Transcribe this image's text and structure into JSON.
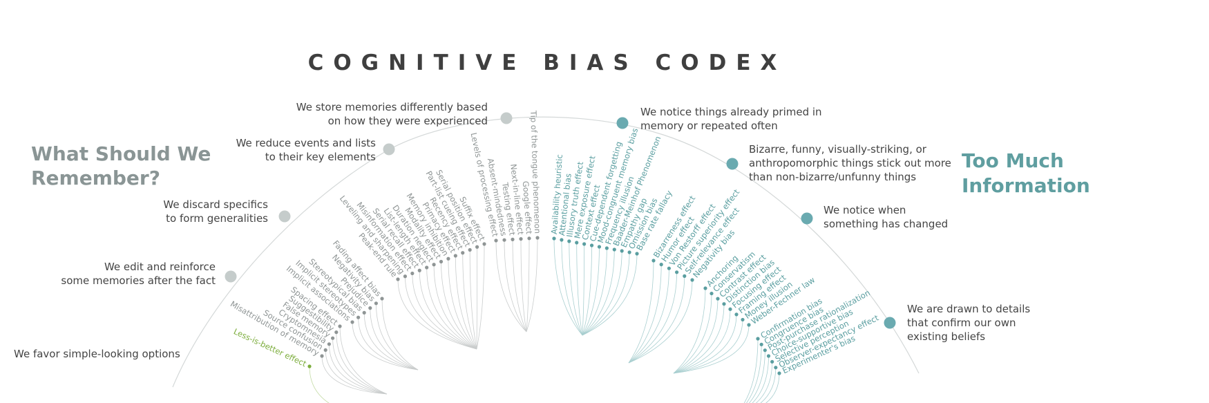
{
  "title": "COGNITIVE BIAS CODEX",
  "headings": {
    "left": [
      "What Should We",
      "Remember?"
    ],
    "right": [
      "Too Much",
      "Information"
    ]
  },
  "nodes": [
    {
      "label": [
        "We store memories differently based",
        "on how they were experienced"
      ]
    },
    {
      "label": [
        "We reduce events and lists",
        "to their key elements"
      ]
    },
    {
      "label": [
        "We discard specifics",
        "to form generalities"
      ]
    },
    {
      "label": [
        "We edit and reinforce",
        "some memories after the fact"
      ]
    },
    {
      "label": [
        "We favor simple-looking options"
      ]
    },
    {
      "label": [
        "We notice things already primed in",
        "memory or repeated often"
      ]
    },
    {
      "label": [
        "Bizarre, funny, visually-striking, or",
        "anthropomorphic things stick out more",
        "than non-bizarre/unfunny things"
      ]
    },
    {
      "label": [
        "We notice when",
        "something has changed"
      ]
    },
    {
      "label": [
        "We are drawn to details",
        "that confirm our own",
        "existing beliefs"
      ]
    }
  ],
  "groups": [
    {
      "items": [
        "Levels of processing effect",
        "Absent-mindedness",
        "Testing effect",
        "Next-in-line effect",
        "Google effect",
        "Tip of the tongue phenomenon"
      ]
    },
    {
      "items": [
        "Suffix effect",
        "Serial position effect",
        "Part-list cueing effect",
        "Recency effect",
        "Primacy effect",
        "Memory inhibition",
        "Modality effect",
        "Duration neglect",
        "List-length effect",
        "Serial recall effect",
        "Misinformation effect",
        "Leveling and sharpening",
        "Peak-end rule"
      ]
    },
    {
      "items": [
        "Fading affect bias",
        "Negativity bias",
        "Prejudice",
        "Stereotypical bias",
        "Implicit stereotypes",
        "Implicit associations"
      ]
    },
    {
      "items": [
        "Spacing effect",
        "Suggestibility",
        "False memory",
        "Cryptomnesia",
        "Source confusion",
        "Misattribution of memory"
      ]
    },
    {
      "items": [
        "Less-is-better effect"
      ]
    },
    {
      "items": [
        "Availability heuristic",
        "Attentional bias",
        "Illusory truth effect",
        "Mere exposure effect",
        "Context effect",
        "Cue-dependent forgetting",
        "Mood-congruent memory bias",
        "Frequency illusion",
        "Baader-Meinhof Phenomenon",
        "Empathy gap",
        "Omission bias",
        "Base rate fallacy"
      ]
    },
    {
      "items": [
        "Bizarreness effect",
        "Humor effect",
        "Von Restorff effect",
        "Picture superiority effect",
        "Self-relevance effect",
        "Negativity bias"
      ]
    },
    {
      "items": [
        "Anchoring",
        "Conservatism",
        "Contrast effect",
        "Distinction bias",
        "Focusing effect",
        "Framing effect",
        "Money illusion",
        "Weber-Fechner law"
      ]
    },
    {
      "items": [
        "Confirmation bias",
        "Congruence bias",
        "Post-purchase rationalization",
        "Choice-supportive bias",
        "Selective perception",
        "Observer-expectancy effect",
        "Experimenter's bias"
      ]
    }
  ]
}
